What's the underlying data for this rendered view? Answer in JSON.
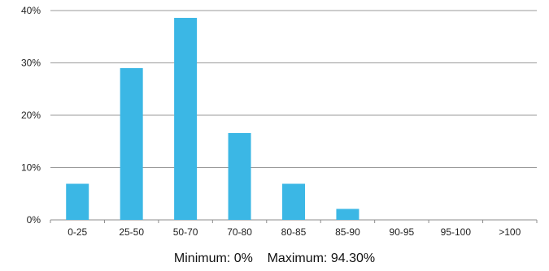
{
  "chart_data": {
    "type": "bar",
    "categories": [
      "0-25",
      "25-50",
      "50-70",
      "70-80",
      "80-85",
      "85-90",
      "90-95",
      "95-100",
      ">100"
    ],
    "values": [
      6.9,
      29.0,
      38.6,
      16.6,
      6.9,
      2.1,
      0,
      0,
      0
    ],
    "ylim": [
      0,
      40
    ],
    "yticks": [
      0,
      10,
      20,
      30,
      40
    ],
    "ytick_labels": [
      "0%",
      "10%",
      "20%",
      "30%",
      "40%"
    ],
    "grid": true,
    "bar_color": "#3bb7e5",
    "title": "",
    "xlabel": "",
    "ylabel": ""
  },
  "footer": {
    "minimum_label": "Minimum: 0%",
    "maximum_label": "Maximum: 94.30%"
  }
}
